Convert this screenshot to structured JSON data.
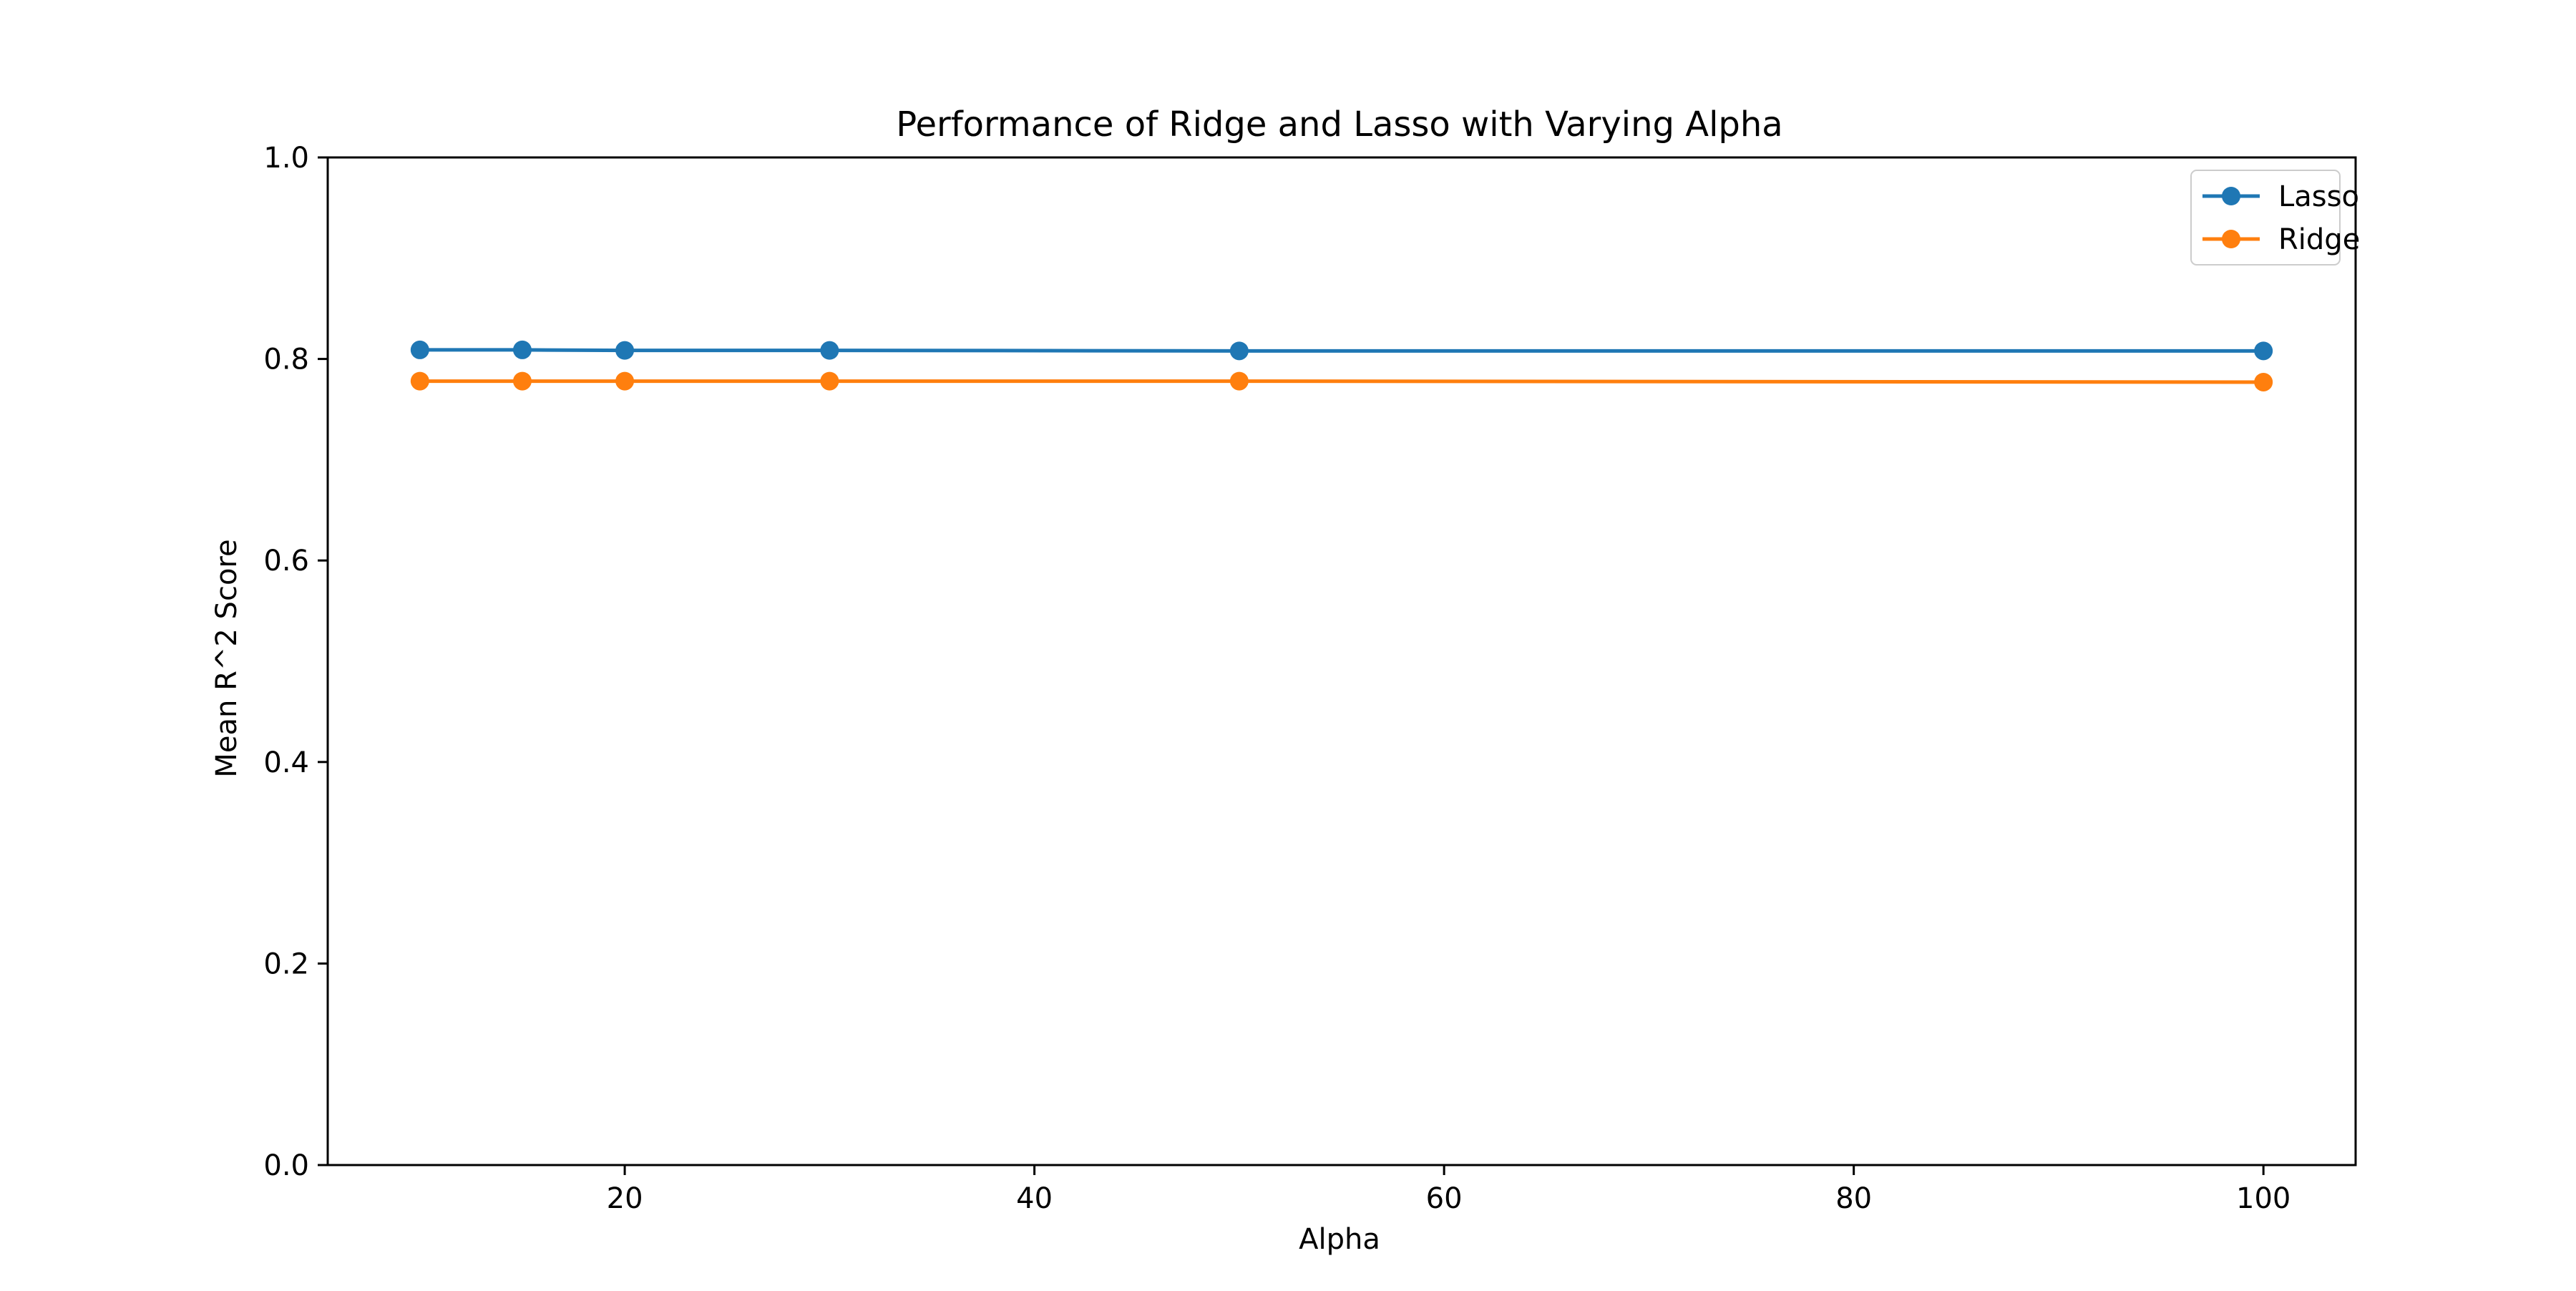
{
  "chart_data": {
    "type": "line",
    "title": "Performance of Ridge and Lasso with Varying Alpha",
    "xlabel": "Alpha",
    "ylabel": "Mean R^2 Score",
    "x": [
      10,
      15,
      20,
      30,
      50,
      100
    ],
    "xlim": [
      5.5,
      104.5
    ],
    "ylim": [
      0.0,
      1.0
    ],
    "xticks": [
      20,
      40,
      60,
      80,
      100
    ],
    "xtick_labels": [
      "20",
      "40",
      "60",
      "80",
      "100"
    ],
    "yticks": [
      0.0,
      0.2,
      0.4,
      0.6,
      0.8,
      1.0
    ],
    "ytick_labels": [
      "0.0",
      "0.2",
      "0.4",
      "0.6",
      "0.8",
      "1.0"
    ],
    "grid": false,
    "legend_position": "top-right",
    "series": [
      {
        "name": "Lasso",
        "color": "#1f77b4",
        "marker": "circle",
        "values": [
          0.809,
          0.809,
          0.8085,
          0.8085,
          0.808,
          0.808
        ]
      },
      {
        "name": "Ridge",
        "color": "#ff7f0e",
        "marker": "circle",
        "values": [
          0.778,
          0.778,
          0.778,
          0.778,
          0.778,
          0.777
        ]
      }
    ]
  }
}
